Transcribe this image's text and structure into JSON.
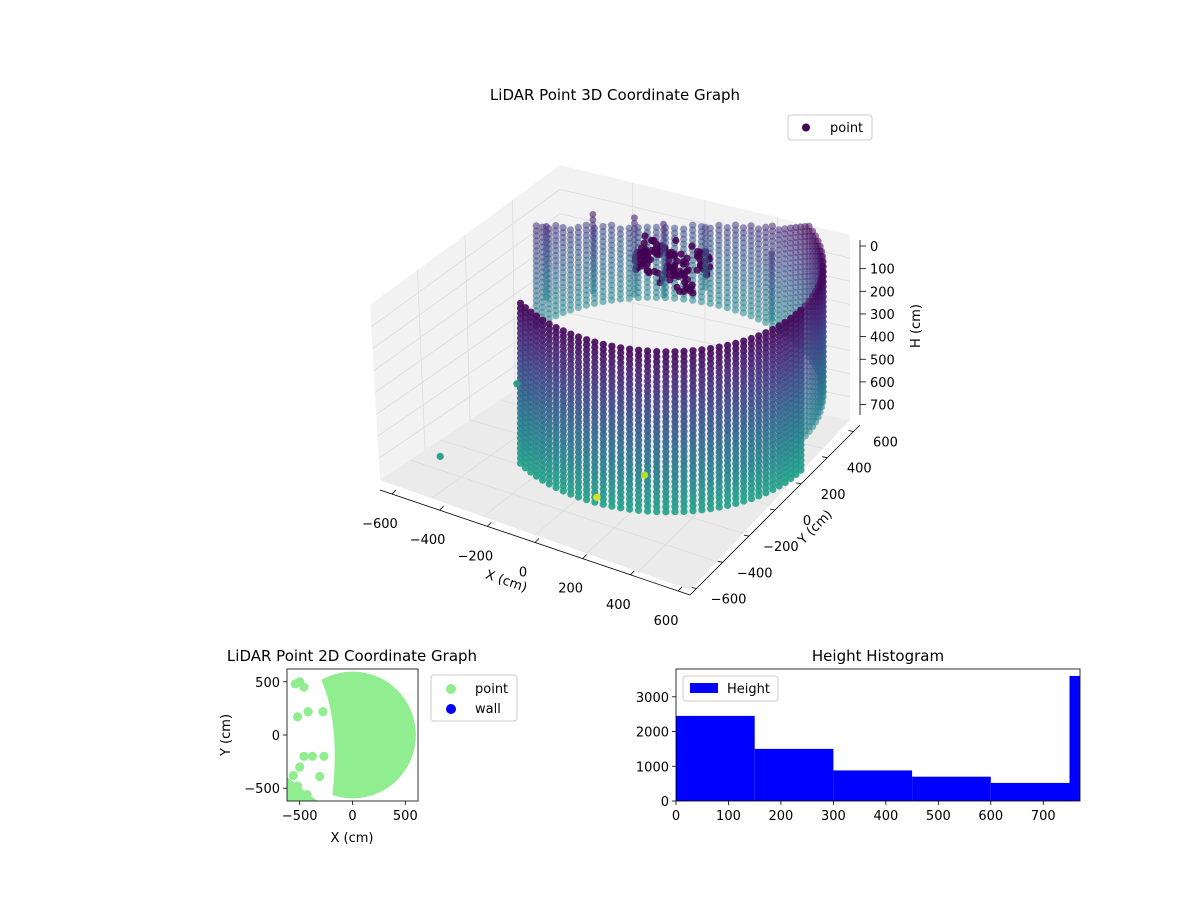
{
  "chart_data": [
    {
      "type": "scatter3d",
      "title": "LiDAR Point 3D Coordinate Graph",
      "xlabel": "X (cm)",
      "ylabel": "Y (cm)",
      "zlabel": "H (cm)",
      "x_ticks": [
        -600,
        -400,
        -200,
        0,
        200,
        400,
        600
      ],
      "y_ticks": [
        -600,
        -400,
        -200,
        0,
        200,
        400,
        600
      ],
      "z_ticks": [
        0,
        100,
        200,
        300,
        400,
        500,
        600,
        700
      ],
      "xlim": [
        -650,
        650
      ],
      "ylim": [
        -650,
        650
      ],
      "zlim": [
        0,
        770
      ],
      "z_inverted": true,
      "colormap": "viridis",
      "legend": [
        {
          "name": "point",
          "color": "#440154"
        }
      ],
      "legend_position": "top-right",
      "grid": true,
      "wall_radius": 600,
      "wall_arc_deg": [
        -120,
        170
      ],
      "outlier_points": [
        {
          "x": -600,
          "y": 0,
          "h": 780,
          "color": "#2a9d84"
        },
        {
          "x": 100,
          "y": -300,
          "h": 760,
          "color": "#b5de2b"
        },
        {
          "x": 20,
          "y": -520,
          "h": 760,
          "color": "#d9e021"
        },
        {
          "x": -620,
          "y": -550,
          "h": 790,
          "color": "#2fa385"
        }
      ]
    },
    {
      "type": "scatter",
      "title": "LiDAR Point 2D Coordinate Graph",
      "xlabel": "X (cm)",
      "ylabel": "Y (cm)",
      "x_ticks": [
        -500,
        0,
        500
      ],
      "y_ticks": [
        500,
        0,
        -500
      ],
      "xlim": [
        -620,
        620
      ],
      "ylim": [
        -620,
        620
      ],
      "legend": [
        {
          "name": "point",
          "color": "#90ee90"
        },
        {
          "name": "wall",
          "color": "#0000ff"
        }
      ],
      "legend_position": "outside-right",
      "disk": {
        "cx": 0,
        "cy": 0,
        "r": 600
      },
      "scatter_points": [
        {
          "x": -500,
          "y": 500
        },
        {
          "x": -540,
          "y": 480
        },
        {
          "x": -460,
          "y": 450
        },
        {
          "x": -420,
          "y": 220
        },
        {
          "x": -520,
          "y": 170
        },
        {
          "x": -280,
          "y": 220
        },
        {
          "x": -460,
          "y": -200
        },
        {
          "x": -380,
          "y": -200
        },
        {
          "x": -270,
          "y": -200
        },
        {
          "x": -500,
          "y": -300
        },
        {
          "x": -310,
          "y": -390
        },
        {
          "x": -560,
          "y": -380
        },
        {
          "x": -520,
          "y": -480
        },
        {
          "x": -430,
          "y": -560
        }
      ]
    },
    {
      "type": "histogram",
      "title": "Height Histogram",
      "legend": [
        {
          "name": "Height",
          "color": "#0000ff"
        }
      ],
      "legend_position": "top-left",
      "x_ticks": [
        0,
        100,
        200,
        300,
        400,
        500,
        600,
        700
      ],
      "y_ticks": [
        0,
        1000,
        2000,
        3000
      ],
      "xlim": [
        0,
        770
      ],
      "ylim": [
        0,
        3800
      ],
      "bins": [
        {
          "from": 0,
          "to": 150,
          "count": 2450
        },
        {
          "from": 150,
          "to": 300,
          "count": 1500
        },
        {
          "from": 300,
          "to": 450,
          "count": 880
        },
        {
          "from": 450,
          "to": 600,
          "count": 700
        },
        {
          "from": 600,
          "to": 750,
          "count": 520
        },
        {
          "from": 750,
          "to": 770,
          "count": 3600
        }
      ]
    }
  ]
}
